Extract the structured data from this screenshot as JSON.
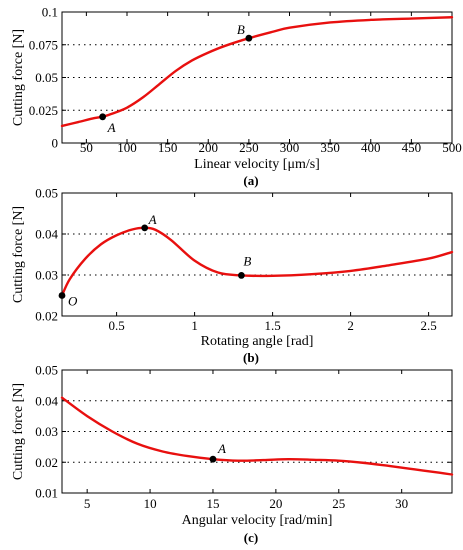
{
  "colors": {
    "curve": "#e8100f",
    "marker": "#000000"
  },
  "chart_data": [
    {
      "type": "line",
      "panel_label": "(a)",
      "xlabel": "Linear velocity [μm/s]",
      "ylabel": "Cutting force [N]",
      "xlim": [
        20,
        500
      ],
      "ylim": [
        0,
        0.1
      ],
      "xticks": [
        50,
        100,
        150,
        200,
        250,
        300,
        350,
        400,
        450,
        500
      ],
      "xtick_labels": [
        "50",
        "100",
        "150",
        "200",
        "250",
        "300",
        "350",
        "400",
        "450",
        "500"
      ],
      "yticks": [
        0,
        0.025,
        0.05,
        0.075,
        0.1
      ],
      "ytick_labels": [
        "0",
        "0.025",
        "0.05",
        "0.075",
        "0.1"
      ],
      "grid": "horizontal dotted",
      "series": [
        {
          "x": [
            20,
            40,
            60,
            70,
            80,
            100,
            120,
            140,
            160,
            180,
            200,
            220,
            250,
            280,
            300,
            350,
            400,
            450,
            500
          ],
          "y": [
            0.013,
            0.016,
            0.019,
            0.02,
            0.022,
            0.027,
            0.035,
            0.045,
            0.055,
            0.063,
            0.069,
            0.074,
            0.08,
            0.085,
            0.088,
            0.092,
            0.094,
            0.095,
            0.096
          ]
        }
      ],
      "annotations": [
        {
          "label": "A",
          "x": 70,
          "y": 0.02
        },
        {
          "label": "B",
          "x": 250,
          "y": 0.08
        }
      ]
    },
    {
      "type": "line",
      "panel_label": "(b)",
      "xlabel": "Rotating angle [rad]",
      "ylabel": "Cutting force [N]",
      "xlim": [
        0.15,
        2.65
      ],
      "ylim": [
        0.02,
        0.05
      ],
      "xticks": [
        0.5,
        1,
        1.5,
        2,
        2.5
      ],
      "xtick_labels": [
        "0.5",
        "1",
        "1.5",
        "2",
        "2.5"
      ],
      "yticks": [
        0.02,
        0.03,
        0.04,
        0.05
      ],
      "ytick_labels": [
        "0.02",
        "0.03",
        "0.04",
        "0.05"
      ],
      "grid": "horizontal dotted",
      "series": [
        {
          "x": [
            0.15,
            0.2,
            0.3,
            0.4,
            0.5,
            0.6,
            0.68,
            0.75,
            0.85,
            1.0,
            1.15,
            1.3,
            1.5,
            1.75,
            2.0,
            2.25,
            2.5,
            2.65
          ],
          "y": [
            0.025,
            0.029,
            0.034,
            0.0375,
            0.0397,
            0.0411,
            0.0415,
            0.041,
            0.0385,
            0.0335,
            0.0306,
            0.0299,
            0.0298,
            0.0302,
            0.031,
            0.0324,
            0.034,
            0.0356
          ]
        }
      ],
      "annotations": [
        {
          "label": "O",
          "x": 0.15,
          "y": 0.025
        },
        {
          "label": "A",
          "x": 0.68,
          "y": 0.0415
        },
        {
          "label": "B",
          "x": 1.3,
          "y": 0.0299
        }
      ]
    },
    {
      "type": "line",
      "panel_label": "(c)",
      "xlabel": "Angular velocity [rad/min]",
      "ylabel": "Cutting force [N]",
      "xlim": [
        3,
        34
      ],
      "ylim": [
        0.01,
        0.05
      ],
      "xticks": [
        5,
        10,
        15,
        20,
        25,
        30
      ],
      "xtick_labels": [
        "5",
        "10",
        "15",
        "20",
        "25",
        "30"
      ],
      "yticks": [
        0.01,
        0.02,
        0.03,
        0.04,
        0.05
      ],
      "ytick_labels": [
        "0.01",
        "0.02",
        "0.03",
        "0.04",
        "0.05"
      ],
      "grid": "horizontal dotted",
      "series": [
        {
          "x": [
            3,
            5,
            7,
            9,
            11,
            13,
            15,
            17,
            19,
            21,
            23,
            25,
            27,
            29,
            31,
            33,
            34
          ],
          "y": [
            0.041,
            0.035,
            0.03,
            0.026,
            0.0235,
            0.022,
            0.021,
            0.0205,
            0.0207,
            0.021,
            0.0208,
            0.0205,
            0.0198,
            0.0188,
            0.0177,
            0.0166,
            0.016
          ]
        }
      ],
      "annotations": [
        {
          "label": "A",
          "x": 15,
          "y": 0.021
        }
      ]
    }
  ]
}
